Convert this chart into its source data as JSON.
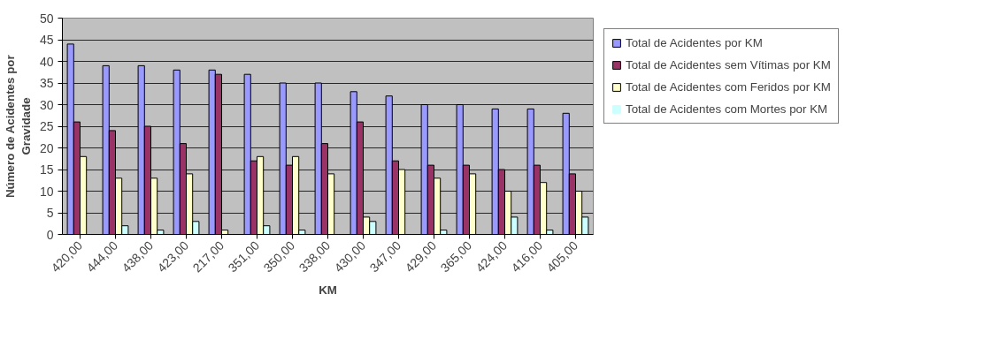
{
  "chart_data": {
    "type": "bar",
    "xlabel": "KM",
    "ylabel": "Número de Acidentes por Gravidade",
    "categories": [
      "420,00",
      "444,00",
      "438,00",
      "423,00",
      "217,00",
      "351,00",
      "350,00",
      "338,00",
      "430,00",
      "347,00",
      "429,00",
      "365,00",
      "424,00",
      "416,00",
      "405,00"
    ],
    "series": [
      {
        "name": "Total de Acidentes por KM",
        "color": "#9999ff",
        "values": [
          44,
          39,
          39,
          38,
          38,
          37,
          35,
          35,
          33,
          32,
          30,
          30,
          29,
          29,
          28
        ]
      },
      {
        "name": "Total de Acidentes sem Vítimas por KM",
        "color": "#993366",
        "values": [
          26,
          24,
          25,
          21,
          37,
          17,
          16,
          21,
          26,
          17,
          16,
          16,
          15,
          16,
          14
        ]
      },
      {
        "name": "Total de Acidentes com Feridos por KM",
        "color": "#ffffcc",
        "values": [
          18,
          13,
          13,
          14,
          1,
          18,
          18,
          14,
          4,
          15,
          13,
          14,
          10,
          12,
          10
        ]
      },
      {
        "name": "Total de Acidentes com Mortes por KM",
        "color": "#ccffff",
        "values": [
          0,
          2,
          1,
          3,
          0,
          2,
          1,
          0,
          3,
          0,
          1,
          0,
          4,
          1,
          4
        ]
      }
    ],
    "ylim": [
      0,
      50
    ],
    "yticks": [
      0,
      5,
      10,
      15,
      20,
      25,
      30,
      35,
      40,
      45,
      50
    ],
    "grid": "y",
    "legend": "right"
  }
}
